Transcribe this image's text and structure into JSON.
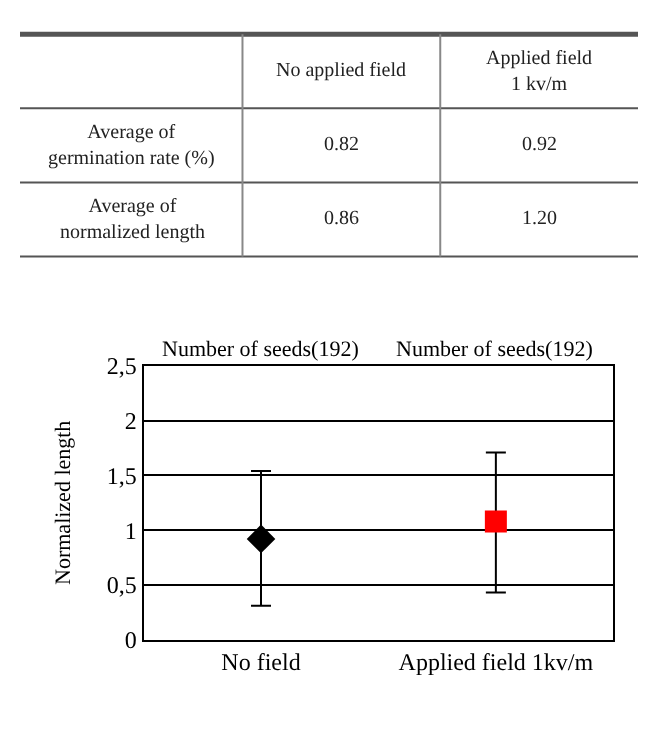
{
  "chart_data": [
    {
      "type": "other",
      "categories": [
        "No applied field",
        "Applied field\n1 kv/m"
      ],
      "y_categories": [
        "Average of\ngermination rate (%)",
        "Average of\nnormalized length"
      ],
      "cells": [
        [
          "0.82",
          "0.92"
        ],
        [
          "0.86",
          "1.20"
        ]
      ]
    },
    {
      "type": "scatter",
      "categories": [
        "No field",
        "Applied field 1kv/m"
      ],
      "ylabel": "Normalized length",
      "annotations": [
        "Number of seeds(192)",
        "Number of seeds(192)"
      ],
      "ylim": [
        0,
        2.5
      ],
      "yticks": [
        0,
        {
          "value": 0.5,
          "label": "0,5"
        },
        1,
        {
          "value": 1.5,
          "label": "1,5"
        },
        2,
        {
          "value": 2.5,
          "label": "2,5"
        }
      ],
      "grid": "y",
      "series": [
        {
          "color": "#000000",
          "marker": "diamond",
          "values": [
            0.92,
            null
          ],
          "errors": [
            [
              0.31,
              1.54
            ],
            null
          ]
        },
        {
          "color": "#ff0000",
          "marker": "square",
          "values": [
            null,
            1.08
          ],
          "errors": [
            null,
            [
              0.43,
              1.71
            ]
          ]
        }
      ]
    }
  ]
}
